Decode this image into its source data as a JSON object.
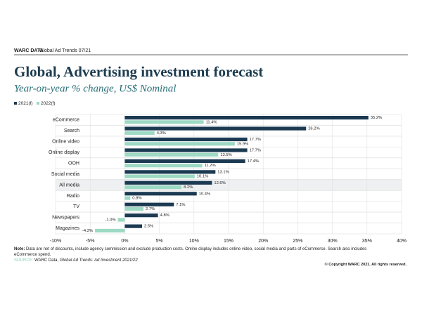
{
  "header": {
    "brand": "WARC DATA",
    "title": "Global Ad Trends 07/21"
  },
  "chart_data": {
    "type": "hbar",
    "title": "Global, Advertising investment forecast",
    "subtitle": "Year-on-year % change, US$ Nominal",
    "categories": [
      "eCommerce",
      "Search",
      "Online video",
      "Online display",
      "OOH",
      "Social media",
      "All media",
      "Radio",
      "TV",
      "Newspapers",
      "Magazines"
    ],
    "series": [
      {
        "name": "2021(f)",
        "color": "#1b3a52",
        "values": [
          35.2,
          26.2,
          17.7,
          17.7,
          17.4,
          13.1,
          12.6,
          10.4,
          7.1,
          4.8,
          2.5
        ],
        "value_labels": [
          "35.2%",
          "26.2%",
          "17.7%",
          "17.7%",
          "17.4%",
          "13.1%",
          "12.6%",
          "10.4%",
          "7.1%",
          "4.8%",
          "2.5%"
        ]
      },
      {
        "name": "2022(f)",
        "color": "#9dd9c3",
        "values": [
          11.4,
          4.3,
          15.9,
          13.5,
          11.2,
          10.1,
          8.2,
          0.8,
          2.7,
          -1.0,
          -4.3
        ],
        "value_labels": [
          "11.4%",
          "4.3%",
          "15.9%",
          "13.5%",
          "11.2%",
          "10.1%",
          "8.2%",
          "0.8%",
          "2.7%",
          "-1.0%",
          "-4.3%"
        ]
      }
    ],
    "xlim": [
      -10,
      40
    ],
    "xticks": [
      {
        "value": -10,
        "label": "-10%"
      },
      {
        "value": -5,
        "label": "-5%"
      },
      {
        "value": 0,
        "label": "0%"
      },
      {
        "value": 5,
        "label": "5%"
      },
      {
        "value": 10,
        "label": "10%"
      },
      {
        "value": 15,
        "label": "15%"
      },
      {
        "value": 20,
        "label": "20%"
      },
      {
        "value": 25,
        "label": "25%"
      },
      {
        "value": 30,
        "label": "30%"
      },
      {
        "value": 35,
        "label": "35%"
      },
      {
        "value": 40,
        "label": "40%"
      }
    ],
    "grid": true,
    "highlight_index": 6,
    "legend": "top-left"
  },
  "footer": {
    "note_label": "Note:",
    "note": "Data are net of discounts, include agency commission and exclude production costs. Online display includes online video, social media and parts of eCommerce. Search also includes eCommerce  spend.",
    "source_label": "SOURCE:",
    "source": "WARC Data,",
    "source_title": "Global Ad Trends: Ad Investment 2021/22",
    "copyright": "© Copyright WARC 2021. All rights reserved."
  }
}
